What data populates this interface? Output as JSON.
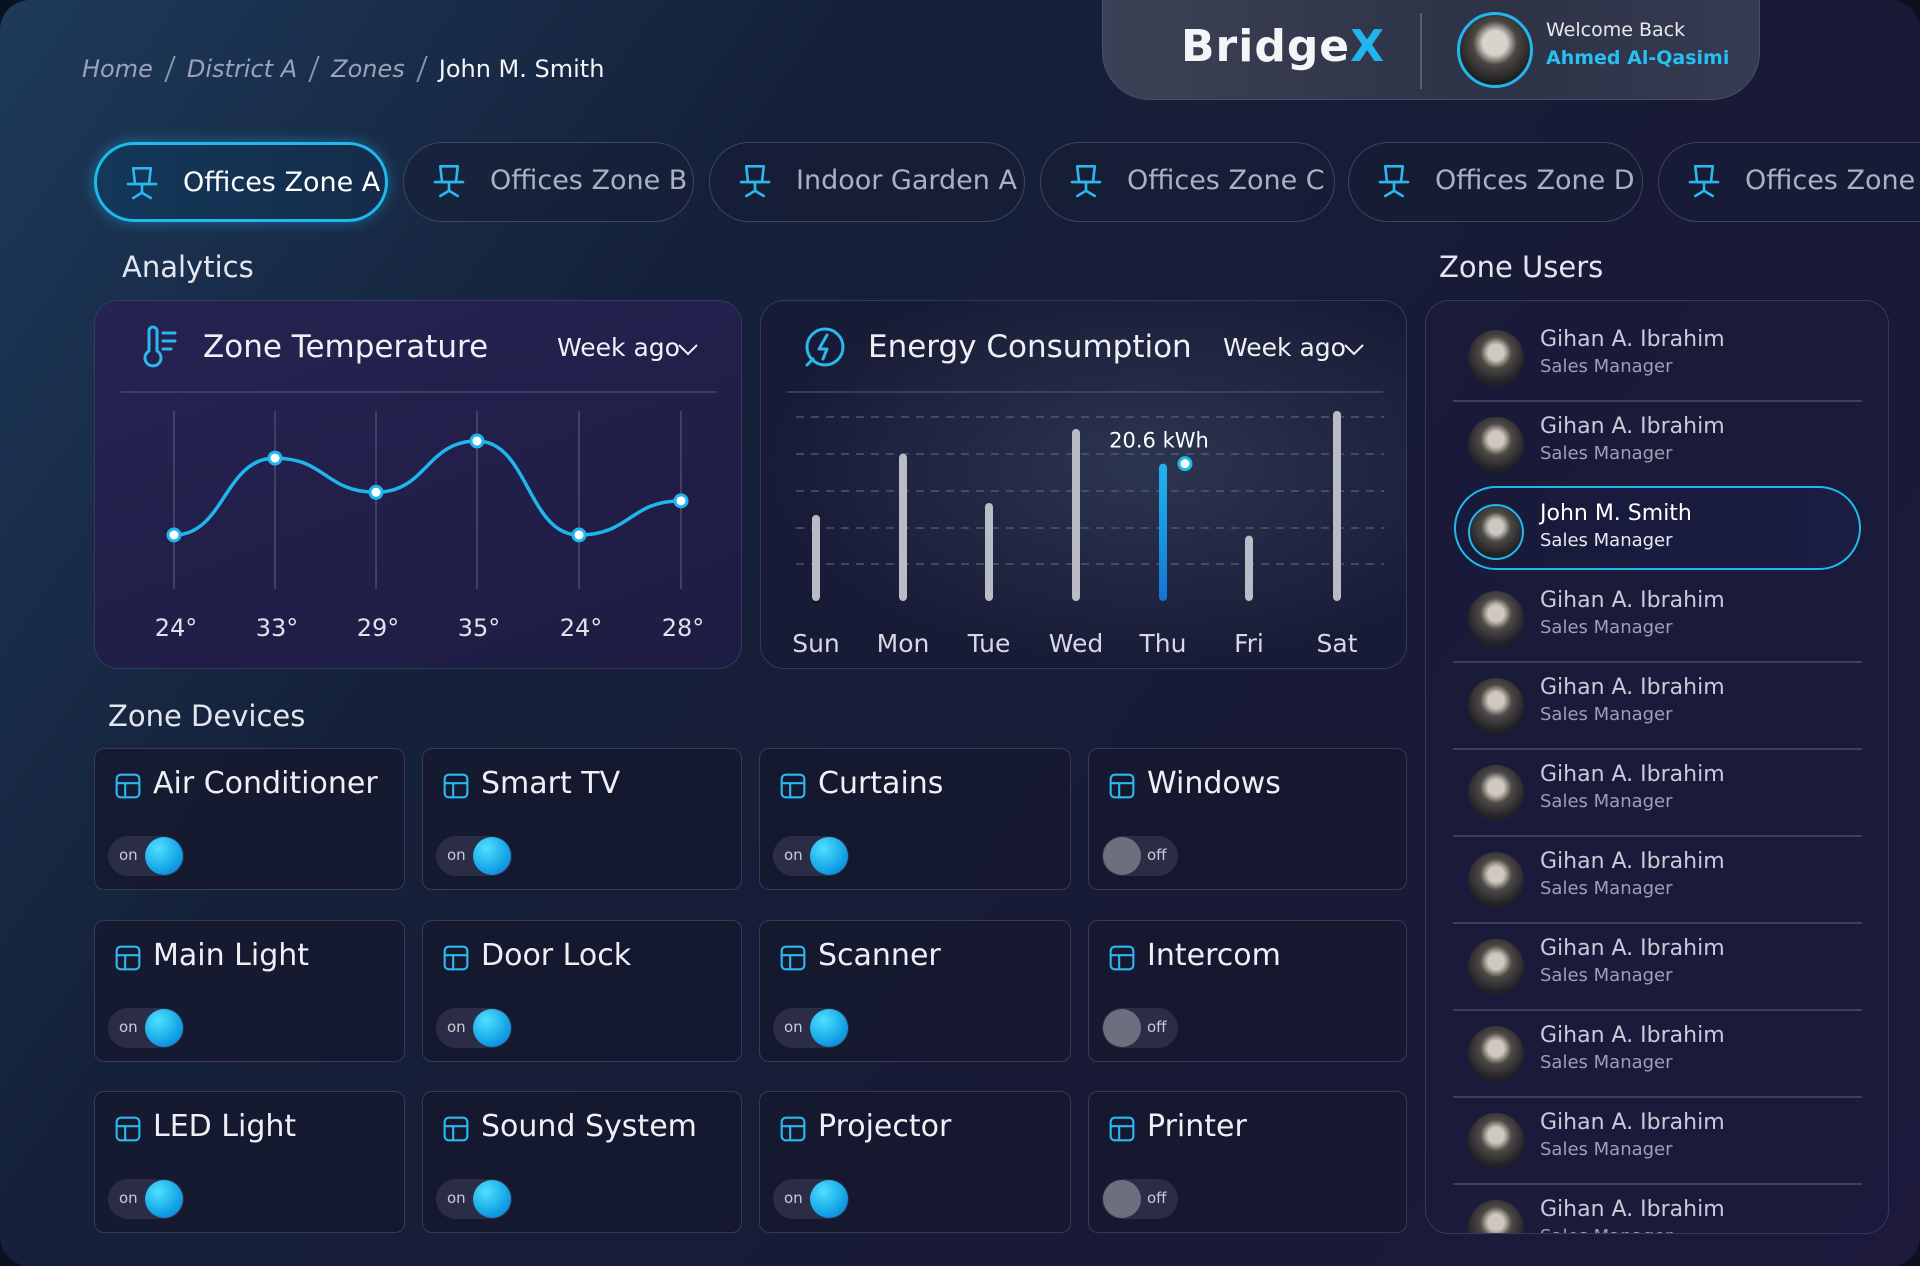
{
  "breadcrumb": [
    "Home",
    "District A",
    "Zones",
    "John M. Smith"
  ],
  "header": {
    "brand": "Bridge",
    "brand_accent": "X",
    "greeting": "Welcome Back",
    "user_name": "Ahmed Al-Qasimi"
  },
  "tabs": {
    "items": [
      "Offices Zone A",
      "Offices Zone B",
      "Indoor Garden A",
      "Offices Zone C",
      "Offices Zone D",
      "Offices Zone D"
    ],
    "active": 0
  },
  "analytics": {
    "title": "Analytics",
    "temperature": {
      "type": "line",
      "title": "Zone Temperature",
      "period": "Week ago",
      "values": [
        24,
        33,
        29,
        35,
        24,
        28
      ],
      "value_labels": [
        "24°",
        "33°",
        "29°",
        "35°",
        "24°",
        "28°"
      ],
      "color": "#1fb6ee"
    },
    "energy": {
      "type": "bar",
      "title": "Energy Consumption",
      "period": "Week ago",
      "categories": [
        "Sun",
        "Mon",
        "Tue",
        "Wed",
        "Thu",
        "Fri",
        "Sat"
      ],
      "values": [
        12.9,
        22.1,
        14.7,
        25.8,
        20.6,
        9.8,
        28.5
      ],
      "value_labels": [
        null,
        null,
        null,
        null,
        "20.6 kWh",
        null,
        null
      ],
      "highlight": 4,
      "color": "#b9bcc6",
      "highlight_color": "#1fb6ee"
    }
  },
  "devices": {
    "title": "Zone Devices",
    "items": [
      {
        "name": "Air Conditioner",
        "state": "on"
      },
      {
        "name": "Smart TV",
        "state": "on"
      },
      {
        "name": "Curtains",
        "state": "on"
      },
      {
        "name": "Windows",
        "state": "off"
      },
      {
        "name": "Main Light",
        "state": "on"
      },
      {
        "name": "Door Lock",
        "state": "on"
      },
      {
        "name": "Scanner",
        "state": "on"
      },
      {
        "name": "Intercom",
        "state": "off"
      },
      {
        "name": "LED Light",
        "state": "on"
      },
      {
        "name": "Sound System",
        "state": "on"
      },
      {
        "name": "Projector",
        "state": "on"
      },
      {
        "name": "Printer",
        "state": "off"
      }
    ]
  },
  "zone_users": {
    "title": "Zone Users",
    "selected": 2,
    "users": [
      {
        "name": "Gihan A. Ibrahim",
        "role": "Sales Manager"
      },
      {
        "name": "Gihan A. Ibrahim",
        "role": "Sales Manager"
      },
      {
        "name": "John M. Smith",
        "role": "Sales Manager"
      },
      {
        "name": "Gihan A. Ibrahim",
        "role": "Sales Manager"
      },
      {
        "name": "Gihan A. Ibrahim",
        "role": "Sales Manager"
      },
      {
        "name": "Gihan A. Ibrahim",
        "role": "Sales Manager"
      },
      {
        "name": "Gihan A. Ibrahim",
        "role": "Sales Manager"
      },
      {
        "name": "Gihan A. Ibrahim",
        "role": "Sales Manager"
      },
      {
        "name": "Gihan A. Ibrahim",
        "role": "Sales Manager"
      },
      {
        "name": "Gihan A. Ibrahim",
        "role": "Sales Manager"
      },
      {
        "name": "Gihan A. Ibrahim",
        "role": "Sales Manager"
      }
    ]
  }
}
